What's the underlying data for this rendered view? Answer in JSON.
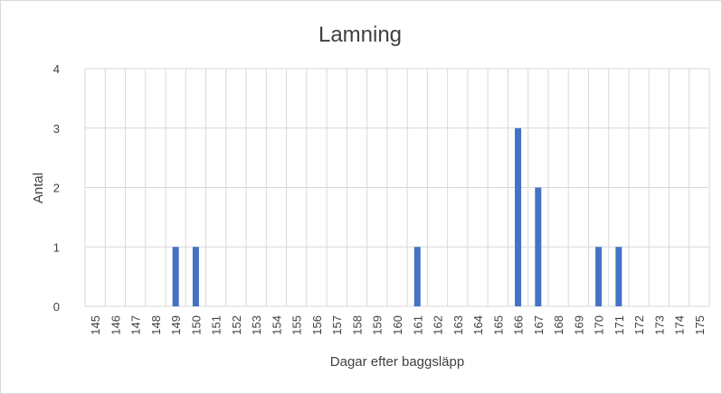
{
  "chart_data": {
    "type": "bar",
    "title": "Lamning",
    "xlabel": "Dagar efter baggsläpp",
    "ylabel": "Antal",
    "categories": [
      "145",
      "146",
      "147",
      "148",
      "149",
      "150",
      "151",
      "152",
      "153",
      "154",
      "155",
      "156",
      "157",
      "158",
      "159",
      "160",
      "161",
      "162",
      "163",
      "164",
      "165",
      "166",
      "167",
      "168",
      "169",
      "170",
      "171",
      "172",
      "173",
      "174",
      "175"
    ],
    "values": [
      0,
      0,
      0,
      0,
      1,
      1,
      0,
      0,
      0,
      0,
      0,
      0,
      0,
      0,
      0,
      0,
      1,
      0,
      0,
      0,
      0,
      3,
      2,
      0,
      0,
      1,
      1,
      0,
      0,
      0,
      0
    ],
    "ylim": [
      0,
      4
    ],
    "yticks": [
      "0",
      "1",
      "2",
      "3",
      "4"
    ],
    "grid": "vertical and horizontal",
    "legend": "none",
    "bar_color": "#4472c4",
    "grid_color": "#d9d9d9"
  }
}
